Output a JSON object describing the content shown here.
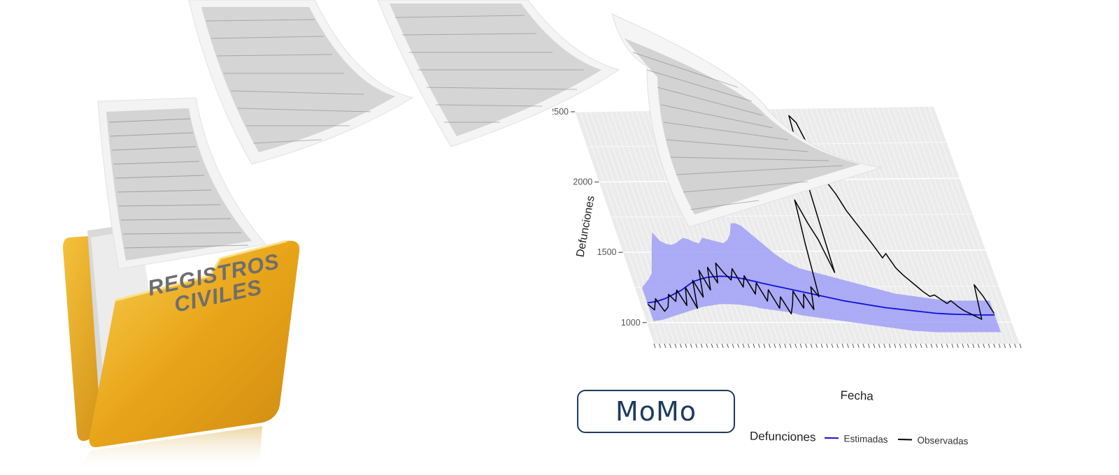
{
  "folder": {
    "label_line1": "REGISTROS",
    "label_line2": "CIVILES",
    "color": "#e8a418"
  },
  "badge": {
    "text": "MoMo",
    "color": "#1e3a5f"
  },
  "legend": {
    "title": "Defunciones",
    "items": [
      {
        "label": "Estimadas",
        "color": "#1010d8"
      },
      {
        "label": "Observadas",
        "color": "#000000"
      }
    ]
  },
  "chart_data": {
    "type": "line",
    "xlabel": "Fecha",
    "ylabel": "Defunciones",
    "ylim": [
      850,
      2500
    ],
    "yticks": [
      1000,
      1500,
      2000,
      2500
    ],
    "ytick_labels": [
      "1000",
      "1500",
      "2000",
      "2500"
    ],
    "grid": true,
    "legend_position": "bottom",
    "n_points": 72,
    "series": [
      {
        "name": "Estimadas",
        "color": "#1010d8",
        "values": [
          1140,
          1145,
          1150,
          1160,
          1170,
          1185,
          1200,
          1215,
          1230,
          1250,
          1270,
          1290,
          1300,
          1310,
          1318,
          1322,
          1325,
          1327,
          1326,
          1322,
          1318,
          1312,
          1305,
          1296,
          1288,
          1278,
          1270,
          1262,
          1254,
          1246,
          1238,
          1230,
          1222,
          1214,
          1206,
          1198,
          1190,
          1182,
          1174,
          1166,
          1158,
          1150,
          1144,
          1138,
          1132,
          1126,
          1120,
          1114,
          1108,
          1102,
          1098,
          1094,
          1090,
          1086,
          1082,
          1078,
          1074,
          1070,
          1066,
          1062,
          1060,
          1058,
          1056,
          1055,
          1054,
          1053,
          1052,
          1051,
          1050,
          1050,
          1050,
          1050
        ]
      },
      {
        "name": "Observadas",
        "color": "#000000",
        "values": [
          1130,
          1090,
          1170,
          1080,
          1110,
          1200,
          1150,
          1230,
          1120,
          1250,
          1100,
          1300,
          1180,
          1370,
          1230,
          1390,
          1280,
          1420,
          1350,
          1300,
          1380,
          1250,
          1330,
          1200,
          1280,
          1150,
          1230,
          1100,
          1180,
          1060,
          1130,
          1220,
          1100,
          1200,
          1090,
          1250,
          1180,
          1550,
          1860,
          1700,
          1580,
          1350,
          2050,
          2450,
          2400,
          2200,
          1980,
          1900,
          1780,
          1700,
          1620,
          1540,
          1450,
          1480,
          1380,
          1330,
          1290,
          1250,
          1210,
          1180,
          1190,
          1160,
          1130,
          1150,
          1110,
          1080,
          1060,
          1040,
          1020,
          1260,
          1180,
          1060
        ]
      }
    ],
    "band": {
      "name": "Estimadas interval",
      "color": "#9a9af8",
      "lower": [
        1010,
        1015,
        1020,
        1030,
        1040,
        1050,
        1060,
        1070,
        1080,
        1090,
        1100,
        1110,
        1115,
        1120,
        1125,
        1130,
        1130,
        1130,
        1128,
        1125,
        1120,
        1115,
        1110,
        1100,
        1095,
        1090,
        1085,
        1080,
        1075,
        1070,
        1060,
        1050,
        1045,
        1040,
        1035,
        1030,
        1025,
        1020,
        1015,
        1010,
        1005,
        1000,
        995,
        990,
        985,
        980,
        975,
        970,
        965,
        960,
        955,
        950,
        945,
        940,
        938,
        936,
        934,
        932,
        930,
        930,
        930,
        930,
        930,
        930,
        930,
        930,
        930,
        930,
        930,
        930,
        930,
        930
      ],
      "upper": [
        1250,
        1280,
        1310,
        1350,
        1450,
        1550,
        1640,
        1580,
        1560,
        1550,
        1560,
        1580,
        1600,
        1590,
        1570,
        1560,
        1600,
        1590,
        1580,
        1570,
        1560,
        1580,
        1620,
        1700,
        1700,
        1680,
        1640,
        1600,
        1560,
        1520,
        1480,
        1450,
        1420,
        1400,
        1380,
        1370,
        1360,
        1350,
        1340,
        1330,
        1320,
        1310,
        1300,
        1290,
        1280,
        1270,
        1260,
        1250,
        1240,
        1230,
        1220,
        1210,
        1200,
        1195,
        1190,
        1185,
        1180,
        1175,
        1170,
        1165,
        1160,
        1155,
        1150,
        1150,
        1150,
        1150,
        1150,
        1150,
        1150,
        1150,
        1150,
        1150
      ]
    }
  }
}
